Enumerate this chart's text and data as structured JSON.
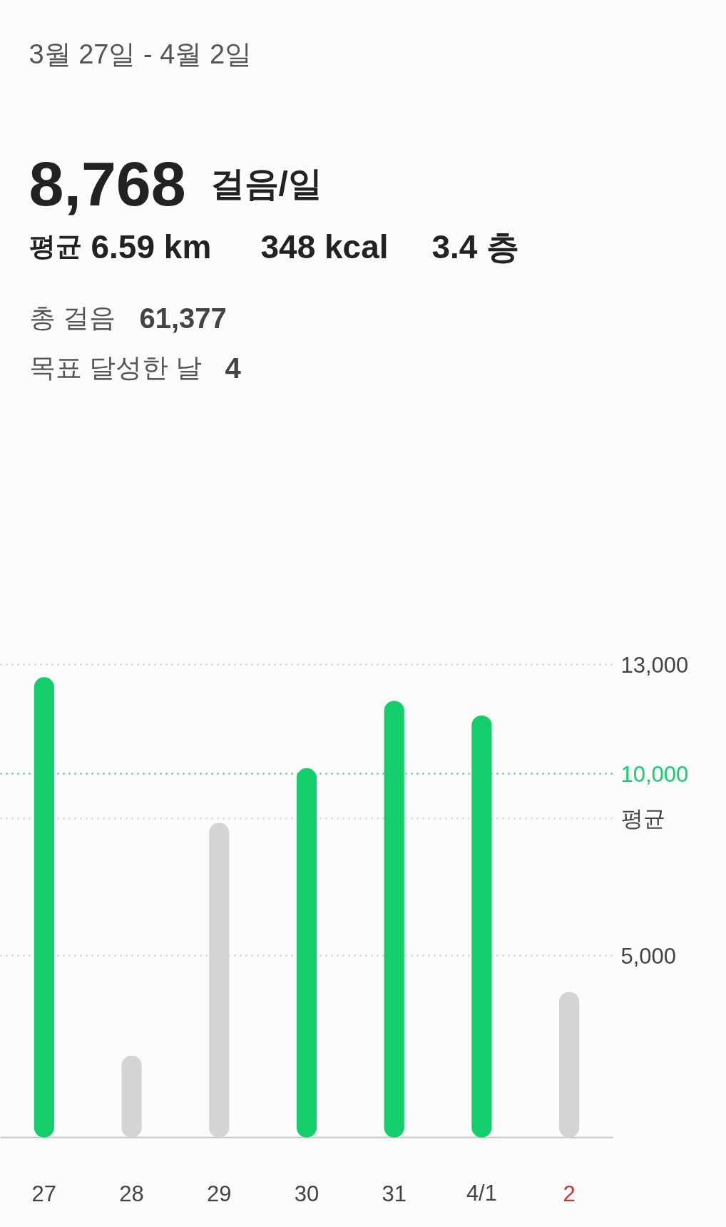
{
  "chart_data": {
    "type": "bar",
    "title": "3월 27일 - 4월 2일",
    "annotations": [
      "8,768",
      "걸음/일",
      "평균",
      "6.59 km",
      "348 kcal",
      "3.4 층",
      "총 걸음",
      "61,377",
      "목표 달성한 날",
      "4"
    ],
    "categories": [
      "27",
      "28",
      "29",
      "30",
      "31",
      "4/1",
      "2"
    ],
    "values": [
      12650,
      2250,
      8650,
      10150,
      12000,
      11600,
      4000
    ],
    "colors": [
      "#13ce6b",
      "#d4d4d4",
      "#d4d4d4",
      "#13ce6b",
      "#13ce6b",
      "#13ce6b",
      "#d4d4d4"
    ],
    "ylim": [
      0,
      13000
    ],
    "yticks": [
      {
        "value": 5000,
        "label": "5,000"
      },
      {
        "value": 13000,
        "label": "13,000"
      }
    ],
    "grid": "y",
    "ref_lines": [
      {
        "axis": "y",
        "value": 10000,
        "label": "10,000",
        "color": "#13ce6b",
        "line_style": "dotted"
      },
      {
        "axis": "y",
        "value": 8768,
        "label": "평균",
        "line_style": "dotted"
      }
    ]
  }
}
